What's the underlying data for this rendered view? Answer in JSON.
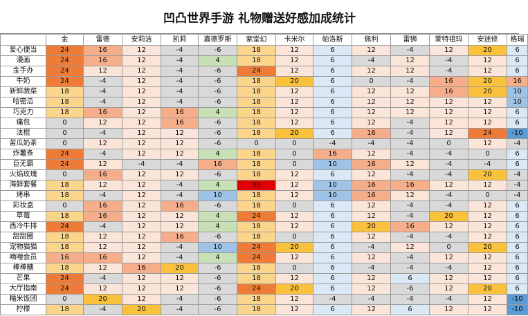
{
  "title": "凹凸世界手游  礼物赠送好感加成统计",
  "columns": [
    "",
    "金",
    "雷德",
    "安莉洁",
    "凯莉",
    "嘉德罗斯",
    "紫堂幻",
    "卡米尔",
    "帕洛斯",
    "佩利",
    "雷狮",
    "蒙特祖玛",
    "安迷修",
    "格瑞"
  ],
  "rows": [
    {
      "name": "爱心便当",
      "values": [
        24,
        16,
        12,
        -4,
        -6,
        18,
        12,
        6,
        12,
        -4,
        12,
        20,
        6
      ]
    },
    {
      "name": "漫画",
      "values": [
        24,
        16,
        12,
        -4,
        4,
        18,
        12,
        6,
        -4,
        12,
        -4,
        12,
        6
      ]
    },
    {
      "name": "金手办",
      "values": [
        24,
        12,
        12,
        -4,
        -6,
        24,
        12,
        6,
        12,
        12,
        -4,
        12,
        6
      ]
    },
    {
      "name": "牛奶",
      "values": [
        24,
        -4,
        12,
        -4,
        -6,
        18,
        20,
        6,
        0,
        -4,
        16,
        20,
        16
      ]
    },
    {
      "name": "新鲜蔬菜",
      "values": [
        18,
        -4,
        12,
        -4,
        -6,
        18,
        12,
        6,
        12,
        12,
        16,
        20,
        10
      ]
    },
    {
      "name": "哈密瓜",
      "values": [
        18,
        -4,
        12,
        -4,
        -6,
        18,
        12,
        6,
        12,
        12,
        12,
        12,
        10
      ]
    },
    {
      "name": "巧克力",
      "values": [
        18,
        16,
        12,
        16,
        4,
        18,
        12,
        6,
        12,
        12,
        12,
        12,
        6
      ]
    },
    {
      "name": "痛包",
      "values": [
        0,
        12,
        12,
        16,
        -6,
        18,
        12,
        6,
        12,
        -4,
        12,
        12,
        6
      ]
    },
    {
      "name": "法棍",
      "values": [
        0,
        -4,
        12,
        12,
        -6,
        18,
        20,
        6,
        16,
        -4,
        12,
        24,
        -10
      ]
    },
    {
      "name": "苦瓜奶茶",
      "values": [
        0,
        12,
        12,
        12,
        -6,
        0,
        0,
        -4,
        -4,
        -4,
        0,
        12,
        -4
      ]
    },
    {
      "name": "炸薯条",
      "values": [
        24,
        -4,
        12,
        12,
        4,
        18,
        0,
        16,
        12,
        -4,
        -4,
        0,
        6
      ]
    },
    {
      "name": "巨无霸",
      "values": [
        24,
        12,
        -4,
        -4,
        16,
        18,
        0,
        10,
        16,
        12,
        -4,
        -4,
        6
      ]
    },
    {
      "name": "火焰玫瑰",
      "values": [
        0,
        16,
        12,
        12,
        -6,
        18,
        12,
        6,
        12,
        -4,
        -4,
        20,
        -4
      ]
    },
    {
      "name": "海鲜套餐",
      "values": [
        18,
        12,
        12,
        -4,
        4,
        30,
        12,
        10,
        16,
        16,
        12,
        12,
        -4
      ]
    },
    {
      "name": "烤串",
      "values": [
        18,
        -4,
        12,
        -4,
        10,
        18,
        12,
        10,
        16,
        12,
        -4,
        0,
        -4
      ]
    },
    {
      "name": "彩妆盒",
      "values": [
        0,
        16,
        12,
        16,
        -6,
        18,
        0,
        6,
        12,
        -4,
        -4,
        12,
        6
      ]
    },
    {
      "name": "草莓",
      "values": [
        18,
        16,
        12,
        12,
        4,
        24,
        12,
        6,
        12,
        -4,
        20,
        12,
        6
      ]
    },
    {
      "name": "西冷牛排",
      "values": [
        24,
        -4,
        12,
        12,
        4,
        18,
        12,
        6,
        20,
        16,
        12,
        12,
        6
      ]
    },
    {
      "name": "甜甜圈",
      "values": [
        18,
        12,
        12,
        16,
        -6,
        18,
        0,
        6,
        12,
        -4,
        -4,
        12,
        6
      ]
    },
    {
      "name": "宠物猫猫",
      "values": [
        18,
        12,
        12,
        -4,
        10,
        24,
        20,
        6,
        -4,
        12,
        0,
        20,
        6
      ]
    },
    {
      "name": "嘀哩会员",
      "values": [
        16,
        16,
        12,
        -4,
        4,
        24,
        12,
        6,
        12,
        -4,
        12,
        12,
        6
      ]
    },
    {
      "name": "棒棒糖",
      "values": [
        18,
        12,
        16,
        20,
        -6,
        18,
        0,
        6,
        -4,
        -4,
        -4,
        12,
        6
      ]
    },
    {
      "name": "芒果",
      "values": [
        24,
        -4,
        12,
        12,
        -6,
        18,
        12,
        6,
        12,
        6,
        12,
        12,
        6
      ]
    },
    {
      "name": "大厅指南",
      "values": [
        24,
        12,
        12,
        12,
        -6,
        24,
        20,
        6,
        12,
        -6,
        12,
        20,
        6
      ]
    },
    {
      "name": "糯米饭团",
      "values": [
        0,
        20,
        12,
        -4,
        -6,
        18,
        12,
        -4,
        -4,
        -4,
        -4,
        12,
        -10
      ]
    },
    {
      "name": "柠檬",
      "values": [
        18,
        -4,
        20,
        -4,
        -6,
        18,
        12,
        6,
        12,
        6,
        12,
        12,
        -10
      ]
    }
  ],
  "value_colors": {
    "30": "#e00000",
    "24": "#ee7c38",
    "20": "#f9c13c",
    "18": "#fbd58c",
    "16": "#f6ae8a",
    "12": "#fbe5d8",
    "10": "#9fc3e6",
    "6": "#dbe8f5",
    "4": "#c7e0b5",
    "0": "#d9d9d9",
    "-4": "#d9d9d9",
    "-6": "#d9d9d9",
    "-10": "#5b9bd5"
  }
}
